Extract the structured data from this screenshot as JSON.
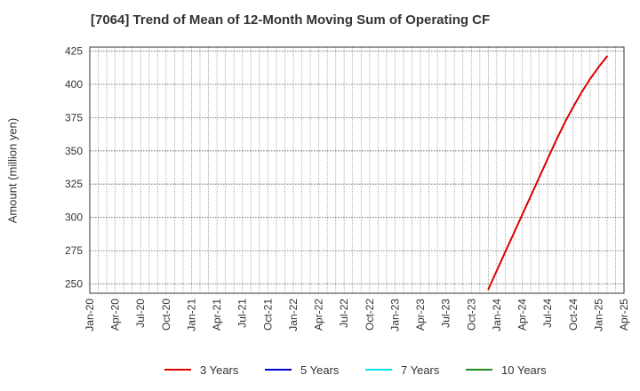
{
  "chart_data": {
    "type": "line",
    "title": "[7064]  Trend of Mean of 12-Month Moving Sum of Operating CF",
    "xlabel": "",
    "ylabel": "Amount (million yen)",
    "x_tick_labels": [
      "Jan-20",
      "Apr-20",
      "Jul-20",
      "Oct-20",
      "Jan-21",
      "Apr-21",
      "Jul-21",
      "Oct-21",
      "Jan-22",
      "Apr-22",
      "Jul-22",
      "Oct-22",
      "Jan-23",
      "Apr-23",
      "Jul-23",
      "Oct-23",
      "Jan-24",
      "Apr-24",
      "Jul-24",
      "Oct-24",
      "Jan-25",
      "Apr-25"
    ],
    "y_ticks": [
      250,
      275,
      300,
      325,
      350,
      375,
      400,
      425
    ],
    "ylim": [
      243,
      428
    ],
    "grid": true,
    "legend_position": "bottom",
    "series": [
      {
        "name": "3 Years",
        "color": "#dd0000",
        "points": [
          {
            "x": "Dec-23",
            "y": 246
          },
          {
            "x": "Jan-24",
            "y": 260
          },
          {
            "x": "Feb-24",
            "y": 274
          },
          {
            "x": "Mar-24",
            "y": 288
          },
          {
            "x": "Apr-24",
            "y": 302
          },
          {
            "x": "May-24",
            "y": 316
          },
          {
            "x": "Jun-24",
            "y": 330
          },
          {
            "x": "Jul-24",
            "y": 344
          },
          {
            "x": "Aug-24",
            "y": 358
          },
          {
            "x": "Sep-24",
            "y": 371
          },
          {
            "x": "Oct-24",
            "y": 383
          },
          {
            "x": "Nov-24",
            "y": 394
          },
          {
            "x": "Dec-24",
            "y": 404
          },
          {
            "x": "Jan-25",
            "y": 413
          },
          {
            "x": "Feb-25",
            "y": 421
          }
        ]
      },
      {
        "name": "5 Years",
        "color": "#0000cc",
        "points": []
      },
      {
        "name": "7 Years",
        "color": "#00e5e5",
        "points": []
      },
      {
        "name": "10 Years",
        "color": "#228b22",
        "points": []
      }
    ]
  }
}
